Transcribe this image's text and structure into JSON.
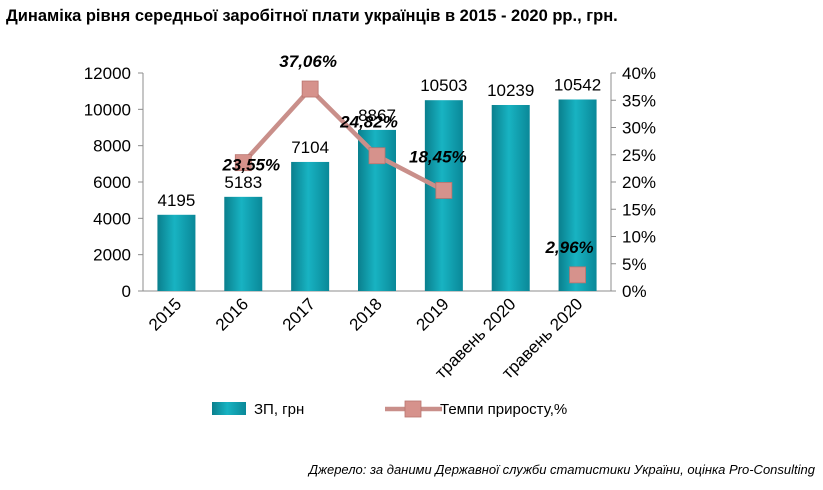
{
  "title": "Динаміка рівня середньої заробітної плати українців в 2015 - 2020 рр., грн.",
  "source": "Джерело: за даними Державної служби статистики України, оцінка Pro-Consulting",
  "colors": {
    "bar": "#0b97a7",
    "line": "#c98f8a",
    "marker": "#d6928c"
  },
  "chart_data": {
    "type": "bar",
    "categories": [
      "2015",
      "2016",
      "2017",
      "2018",
      "2019",
      "травень 2020",
      "травень 2020"
    ],
    "series": [
      {
        "name": "ЗП, грн",
        "type": "bar",
        "axis": "left",
        "values": [
          4195,
          5183,
          7104,
          8867,
          10503,
          10239,
          10542
        ],
        "labels": [
          "4195",
          "5183",
          "7104",
          "8867",
          "10503",
          "10239",
          "10542"
        ]
      },
      {
        "name": "Темпи приросту,%",
        "type": "line",
        "axis": "right",
        "values": [
          null,
          23.55,
          37.06,
          24.82,
          18.45,
          null,
          2.96
        ],
        "labels": [
          null,
          "23,55%",
          "37,06%",
          "24,82%",
          "18,45%",
          null,
          "2,96%"
        ]
      }
    ],
    "y_left": {
      "ylim": [
        0,
        12000
      ],
      "ticks": [
        "0",
        "2000",
        "4000",
        "6000",
        "8000",
        "10000",
        "12000"
      ]
    },
    "y_right": {
      "ylim": [
        0,
        40
      ],
      "ticks": [
        "0%",
        "5%",
        "10%",
        "15%",
        "20%",
        "25%",
        "30%",
        "35%",
        "40%"
      ]
    },
    "legend": {
      "position": "bottom",
      "entries": [
        "ЗП, грн",
        "Темпи приросту,%"
      ]
    }
  }
}
